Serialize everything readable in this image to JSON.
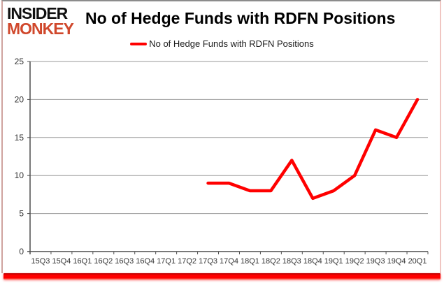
{
  "logo": {
    "line1": "INSIDER",
    "line2": "MONKEY",
    "line1_color": "#111111",
    "line2_color": "#d0482c"
  },
  "header": {
    "title": "No of Hedge Funds with RDFN Positions"
  },
  "legend": {
    "label": "No of Hedge Funds with RDFN Positions",
    "color": "#ff0000"
  },
  "colors": {
    "line": "#ff0000",
    "grid": "#9a9a9a",
    "axis": "#4d4d4d",
    "bottom_bar": "#ff0000"
  },
  "chart_data": {
    "type": "line",
    "title": "No of Hedge Funds with RDFN Positions",
    "categories": [
      "15Q3",
      "15Q4",
      "16Q1",
      "16Q2",
      "16Q3",
      "16Q4",
      "17Q1",
      "17Q2",
      "17Q3",
      "17Q4",
      "18Q1",
      "18Q2",
      "18Q3",
      "18Q4",
      "19Q1",
      "19Q2",
      "19Q3",
      "19Q4",
      "20Q1"
    ],
    "series": [
      {
        "name": "No of Hedge Funds with RDFN Positions",
        "color": "#ff0000",
        "values": [
          null,
          null,
          null,
          null,
          null,
          null,
          null,
          null,
          9,
          9,
          8,
          8,
          12,
          7,
          8,
          10,
          16,
          15,
          20
        ]
      }
    ],
    "xlabel": "",
    "ylabel": "",
    "ylim": [
      0,
      25
    ],
    "yticks": [
      0,
      5,
      10,
      15,
      20,
      25
    ],
    "grid": "horizontal",
    "legend_position": "top"
  }
}
